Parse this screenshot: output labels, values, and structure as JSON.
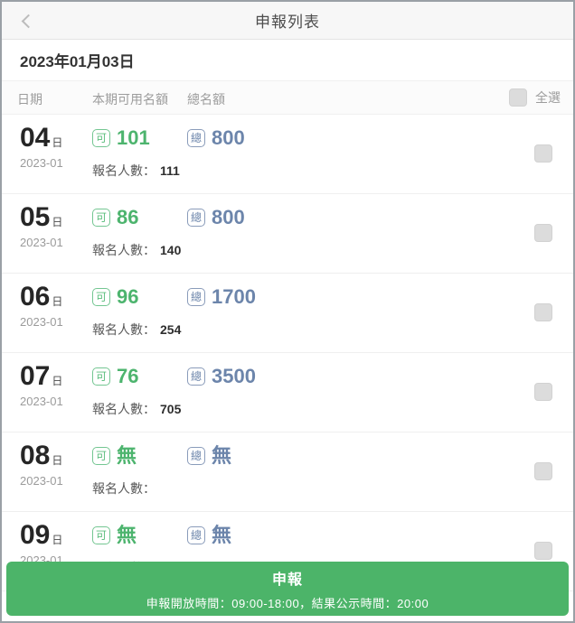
{
  "header": {
    "title": "申報列表",
    "back_icon": "chevron-left"
  },
  "date_bar": {
    "date": "2023年01月03日"
  },
  "columns": {
    "date": "日期",
    "available": "本期可用名額",
    "total": "總名額",
    "select_all": "全選"
  },
  "labels": {
    "day_suffix": "日",
    "available_badge": "可",
    "total_badge": "總",
    "applicants": "報名人數："
  },
  "rows": [
    {
      "day": "04",
      "month": "2023-01",
      "available": "101",
      "total": "800",
      "applicants": "111"
    },
    {
      "day": "05",
      "month": "2023-01",
      "available": "86",
      "total": "800",
      "applicants": "140"
    },
    {
      "day": "06",
      "month": "2023-01",
      "available": "96",
      "total": "1700",
      "applicants": "254"
    },
    {
      "day": "07",
      "month": "2023-01",
      "available": "76",
      "total": "3500",
      "applicants": "705"
    },
    {
      "day": "08",
      "month": "2023-01",
      "available": "無",
      "total": "無",
      "applicants": ""
    },
    {
      "day": "09",
      "month": "2023-01",
      "available": "無",
      "total": "無",
      "applicants": ""
    }
  ],
  "footer": {
    "button_label": "申報",
    "subtitle": "申報開放時間：09:00-18:00，結果公示時間：20:00"
  },
  "colors": {
    "accent_green": "#4db46e",
    "accent_blue": "#6c85ab",
    "button_green": "#4cb469",
    "checkbox_gray": "#dcdcdc"
  }
}
